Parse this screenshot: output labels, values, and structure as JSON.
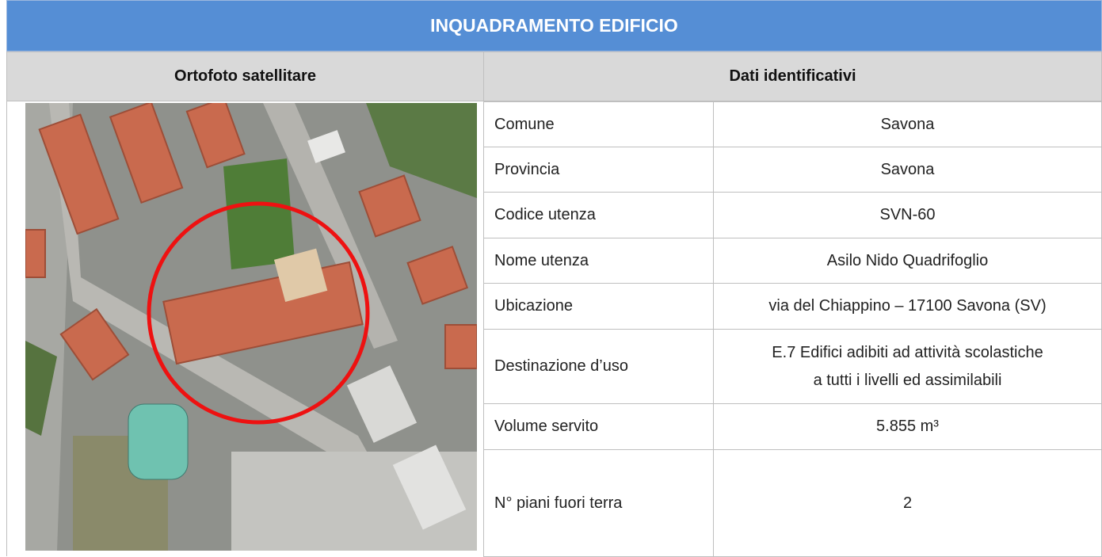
{
  "header": {
    "title": "INQUADRAMENTO EDIFICIO"
  },
  "columns": [
    "Ortofoto satellitare",
    "Dati identificativi"
  ],
  "table": {
    "rows": [
      {
        "label": "Comune",
        "value": "Savona"
      },
      {
        "label": "Provincia",
        "value": "Savona"
      },
      {
        "label": "Codice utenza",
        "value": "SVN-60"
      },
      {
        "label": "Nome utenza",
        "value": "Asilo Nido Quadrifoglio"
      },
      {
        "label": "Ubicazione",
        "value": "via del Chiappino – 17100 Savona (SV)"
      },
      {
        "label": "Destinazione d’uso",
        "value": [
          "E.7 Edifici adibiti ad attività scolastiche",
          "a tutti i livelli ed assimilabili"
        ]
      },
      {
        "label": "Volume servito",
        "value": "5.855 m³"
      },
      {
        "label": "N° piani fuori terra",
        "value": "2"
      }
    ]
  }
}
